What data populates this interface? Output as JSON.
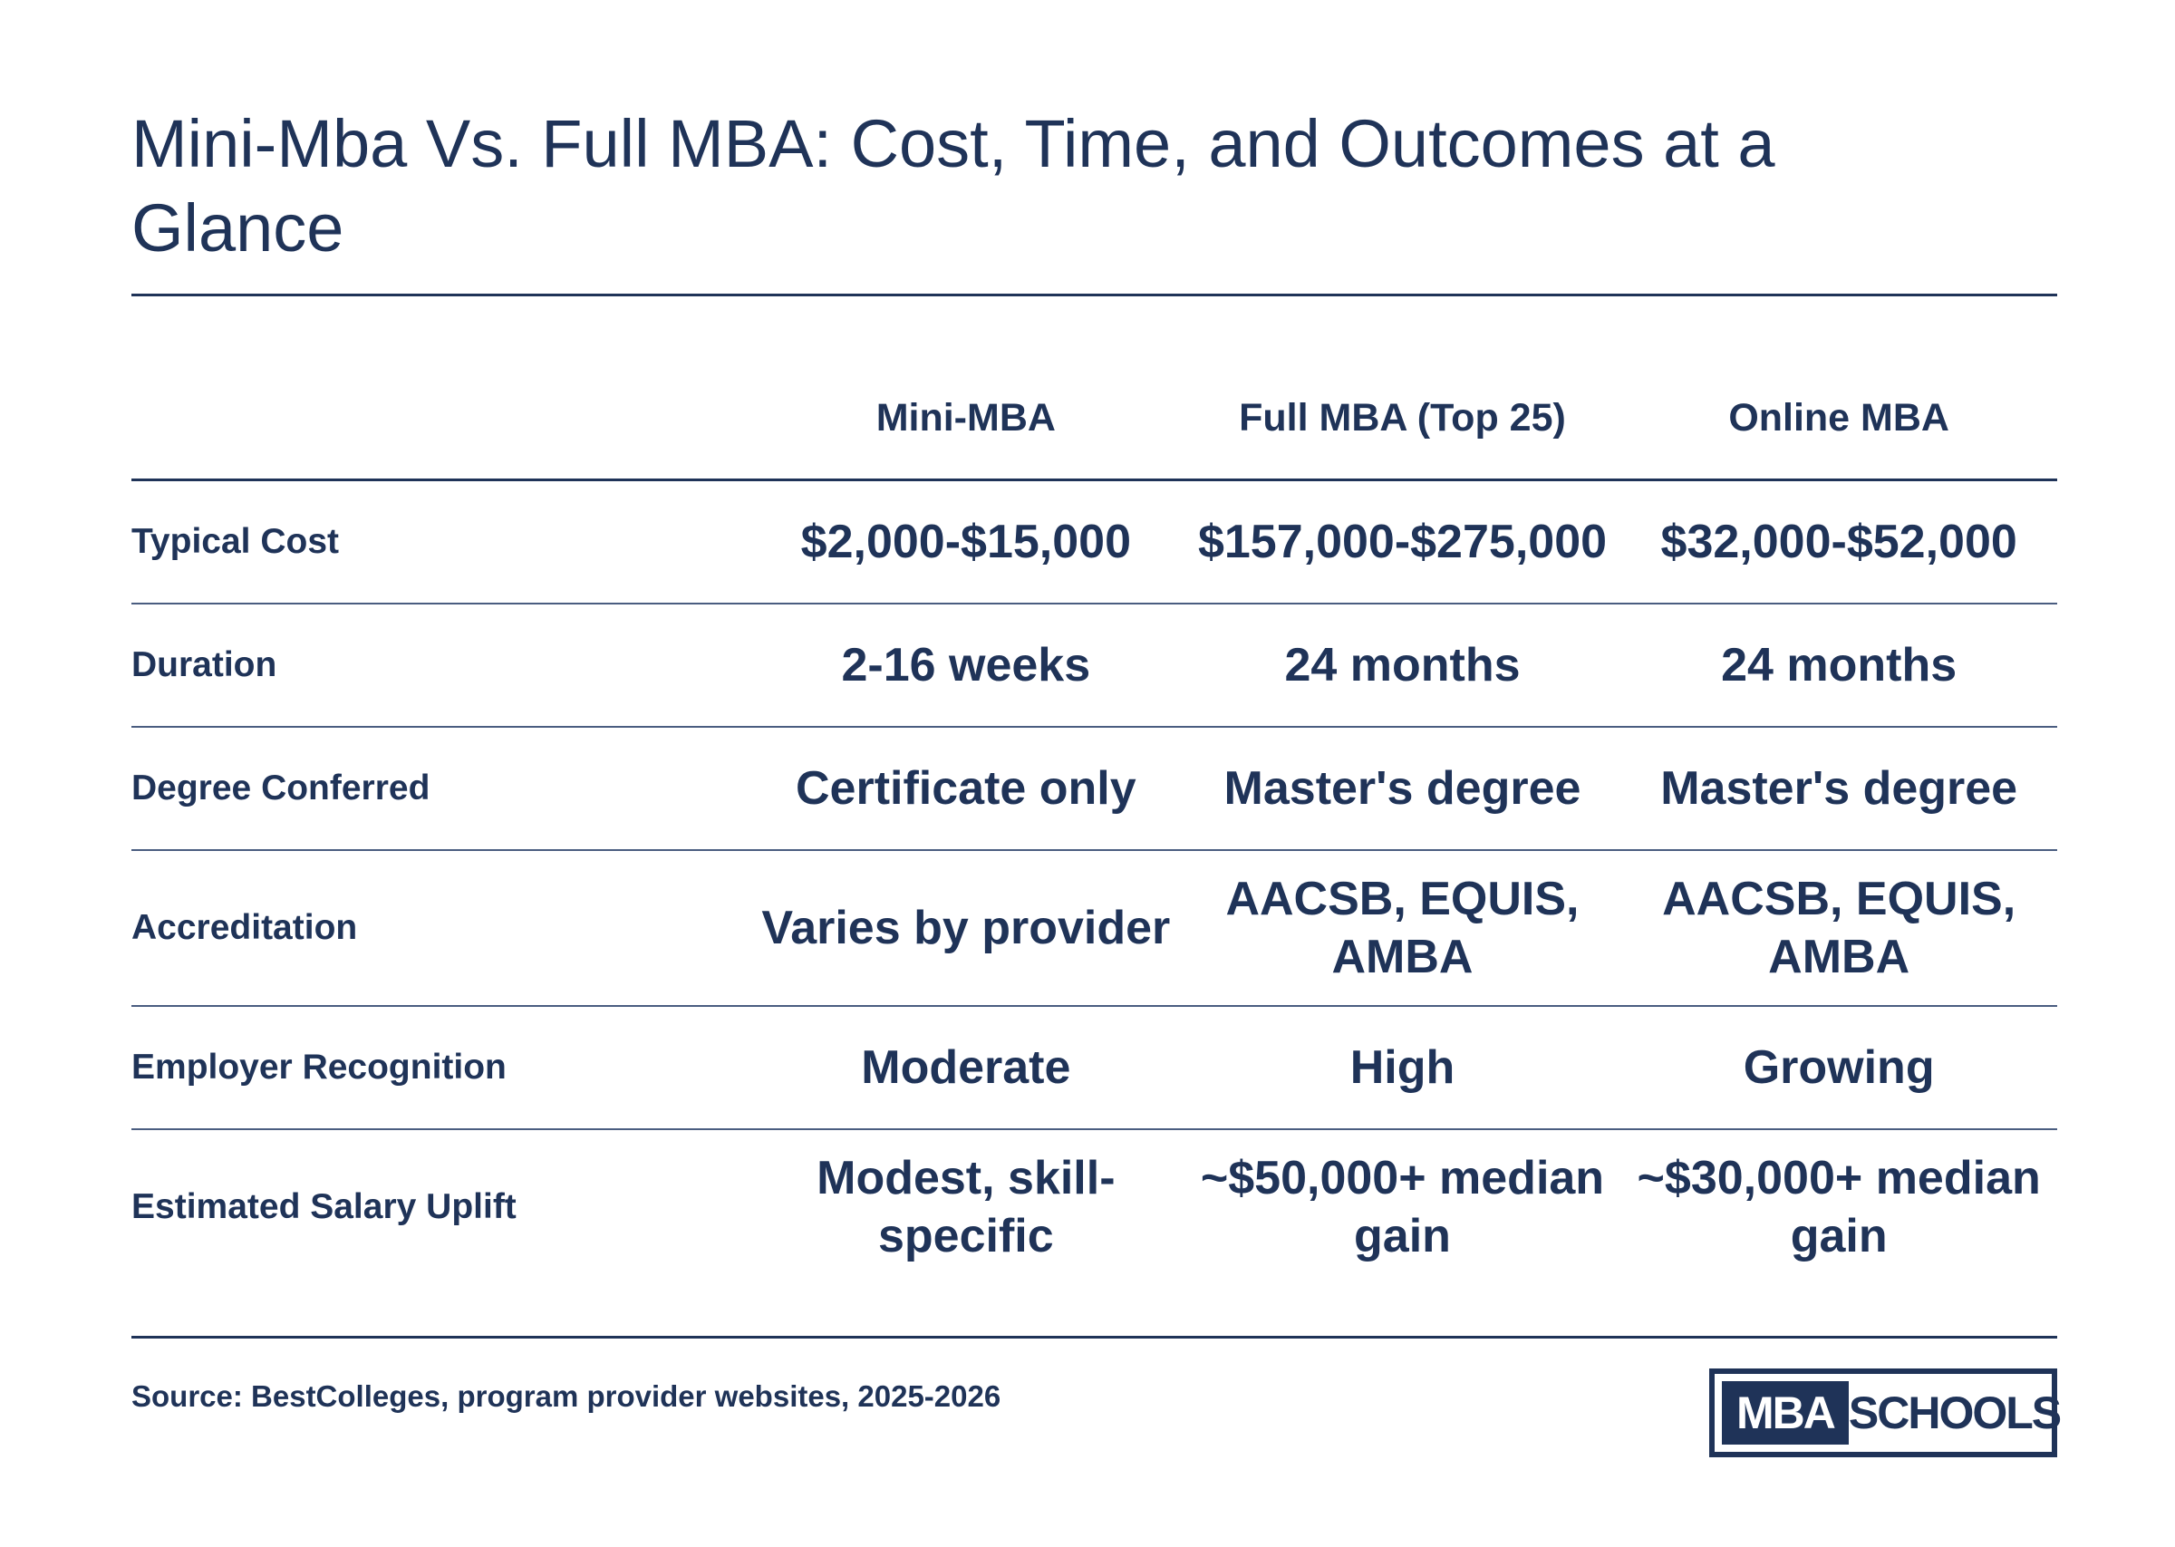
{
  "title": "Mini-Mba Vs. Full MBA: Cost, Time, and Outcomes at a Glance",
  "columns": [
    "",
    "Mini-MBA",
    "Full MBA (Top 25)",
    "Online MBA"
  ],
  "rows": [
    {
      "label": "Typical Cost",
      "values": [
        "$2,000-$15,000",
        "$157,000-$275,000",
        "$32,000-$52,000"
      ]
    },
    {
      "label": "Duration",
      "values": [
        "2-16 weeks",
        "24 months",
        "24 months"
      ]
    },
    {
      "label": "Degree Conferred",
      "values": [
        "Certificate only",
        "Master's degree",
        "Master's degree"
      ]
    },
    {
      "label": "Accreditation",
      "values": [
        "Varies by provider",
        "AACSB, EQUIS, AMBA",
        "AACSB, EQUIS, AMBA"
      ]
    },
    {
      "label": "Employer Recognition",
      "values": [
        "Moderate",
        "High",
        "Growing"
      ]
    },
    {
      "label": "Estimated Salary Uplift",
      "values": [
        "Modest, skill-specific",
        "~$50,000+ median gain",
        "~$30,000+ median gain"
      ]
    }
  ],
  "source": "Source: BestColleges, program provider websites, 2025-2026",
  "logo": {
    "part1": "MBA",
    "part2": "SCHOOLS"
  },
  "colors": {
    "text": "#1f3358",
    "background": "#ffffff"
  }
}
